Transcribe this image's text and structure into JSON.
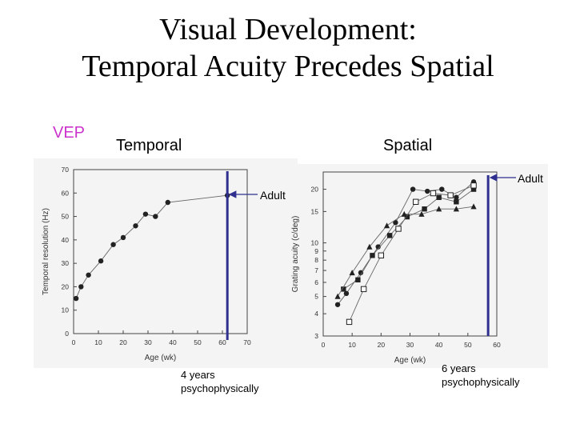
{
  "title": {
    "line1": "Visual Development:",
    "line2": "Temporal Acuity Precedes Spatial"
  },
  "labels": {
    "vep": "VEP",
    "temporal": "Temporal",
    "spatial": "Spatial",
    "adult_left": "Adult",
    "adult_right": "Adult",
    "note_left_1": "4 years",
    "note_left_2": "psychophysically",
    "note_right_1": "6 years",
    "note_right_2": "psychophysically"
  },
  "colors": {
    "vep_label": "#cc33cc",
    "adult_marker": "#2e2f8f",
    "photo_bg": "#f4f4f4"
  },
  "chart_data": [
    {
      "type": "line",
      "xlabel": "Age (wk)",
      "ylabel": "Temporal resolution (Hz)",
      "xlim": [
        0,
        70
      ],
      "ylim": [
        0,
        70
      ],
      "xticks": [
        0,
        10,
        20,
        30,
        40,
        50,
        60,
        70
      ],
      "yticks": [
        0,
        10,
        20,
        30,
        40,
        50,
        60,
        70
      ],
      "series": [
        {
          "marker": "filled-circle",
          "x": [
            1,
            3,
            6,
            11,
            16,
            20,
            25,
            29,
            33,
            38,
            62
          ],
          "y": [
            15,
            20,
            25,
            31,
            38,
            41,
            46,
            51,
            50,
            56,
            59
          ]
        }
      ],
      "adult_marker_x": 62
    },
    {
      "type": "line",
      "xlabel": "Age (wk)",
      "ylabel": "Grating acuity (c/deg)",
      "xlim": [
        0,
        60
      ],
      "yscale": "log",
      "ylim": [
        3,
        25
      ],
      "xticks": [
        0,
        10,
        20,
        30,
        40,
        50,
        60
      ],
      "yticks": [
        3,
        4,
        5,
        6,
        7,
        8,
        9,
        10,
        15,
        20
      ],
      "series": [
        {
          "marker": "filled-circle",
          "x": [
            5,
            8,
            13,
            19,
            25,
            31,
            36,
            41,
            46,
            52
          ],
          "y": [
            4.5,
            5.2,
            6.8,
            9.5,
            13,
            20,
            19.5,
            20,
            18,
            22
          ]
        },
        {
          "marker": "filled-square",
          "x": [
            7,
            12,
            17,
            23,
            29,
            35,
            40,
            46,
            52
          ],
          "y": [
            5.5,
            6.2,
            8.5,
            11,
            14,
            15.5,
            18,
            17,
            20
          ]
        },
        {
          "marker": "open-square",
          "x": [
            9,
            14,
            20,
            26,
            32,
            38,
            44,
            52
          ],
          "y": [
            3.6,
            5.5,
            8.5,
            12,
            17,
            19,
            18.5,
            21
          ]
        },
        {
          "marker": "triangle",
          "x": [
            5,
            10,
            16,
            22,
            28,
            34,
            40,
            46,
            52
          ],
          "y": [
            5,
            6.8,
            9.5,
            12.5,
            14.5,
            14.5,
            15.5,
            15.5,
            16
          ]
        }
      ],
      "adult_marker_x": 57
    }
  ]
}
